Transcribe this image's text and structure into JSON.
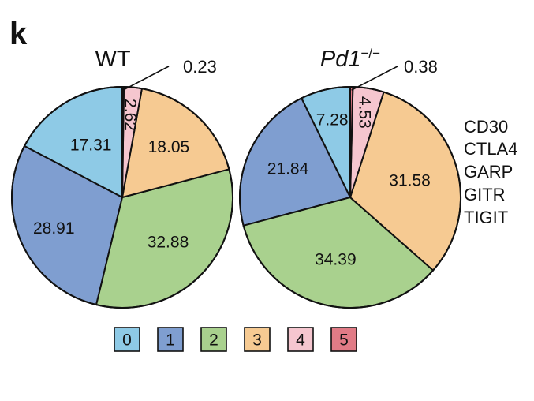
{
  "panel_label": "k",
  "legend": {
    "items": [
      {
        "label": "0",
        "color": "#8ecae6"
      },
      {
        "label": "1",
        "color": "#7f9ed0"
      },
      {
        "label": "2",
        "color": "#a9d18e"
      },
      {
        "label": "3",
        "color": "#f6ca92"
      },
      {
        "label": "4",
        "color": "#f5c6cf"
      },
      {
        "label": "5",
        "color": "#e17b86"
      }
    ]
  },
  "markers": [
    "CD30",
    "CTLA4",
    "GARP",
    "GITR",
    "TIGIT"
  ],
  "chart_data": [
    {
      "type": "pie",
      "title": "WT",
      "categories": [
        "0",
        "1",
        "2",
        "3",
        "4",
        "5"
      ],
      "values": [
        17.31,
        28.91,
        32.88,
        18.05,
        2.62,
        0.23
      ],
      "labels": [
        "17.31",
        "28.91",
        "32.88",
        "18.05",
        "2.62",
        "0.23"
      ]
    },
    {
      "type": "pie",
      "title": "Pd1",
      "title_superscript": "−/−",
      "categories": [
        "0",
        "1",
        "2",
        "3",
        "4",
        "5"
      ],
      "values": [
        7.28,
        21.84,
        34.39,
        31.58,
        4.53,
        0.38
      ],
      "labels": [
        "7.28",
        "21.84",
        "34.39",
        "31.58",
        "4.53",
        "0.38"
      ]
    }
  ]
}
